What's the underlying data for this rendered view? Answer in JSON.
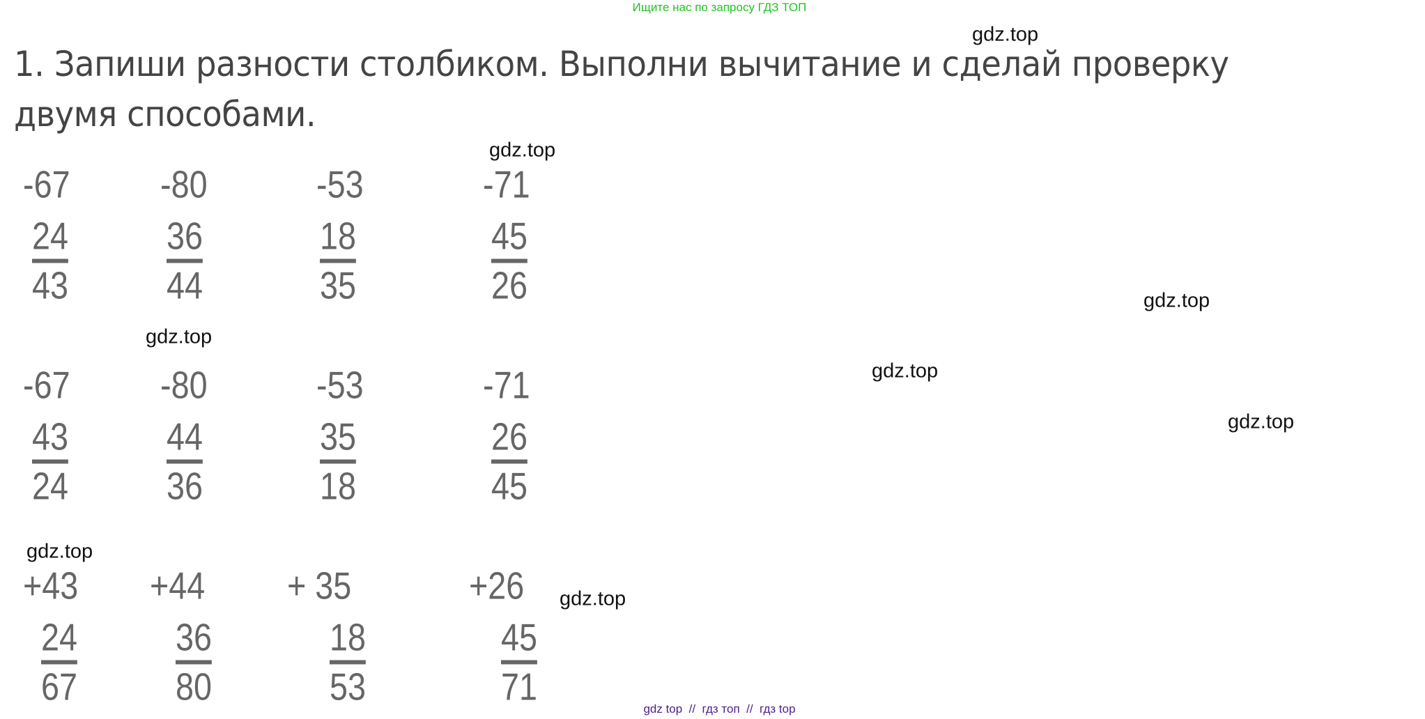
{
  "header": {
    "text": "Ищите нас по запросу ГДЗ ТОП",
    "color": "#22c322"
  },
  "title": "1. Запиши разности столбиком. Выполни вычитание и сделай проверку двумя способами.",
  "watermark": "gdz.top",
  "subtraction": [
    {
      "minuend": "-67",
      "subtrahend": "24",
      "result": "43"
    },
    {
      "minuend": "-80",
      "subtrahend": "36",
      "result": "44"
    },
    {
      "minuend": "-53",
      "subtrahend": "18",
      "result": "35"
    },
    {
      "minuend": "-71",
      "subtrahend": "45",
      "result": "26"
    }
  ],
  "check_subtraction": [
    {
      "minuend": "-67",
      "subtrahend": "43",
      "result": "24"
    },
    {
      "minuend": "-80",
      "subtrahend": "44",
      "result": "36"
    },
    {
      "minuend": "-53",
      "subtrahend": "35",
      "result": "18"
    },
    {
      "minuend": "-71",
      "subtrahend": "26",
      "result": "45"
    }
  ],
  "check_addition": [
    {
      "addend": "+43",
      "addend2": "24",
      "result": "67"
    },
    {
      "addend": "+44",
      "addend2": "36",
      "result": "80"
    },
    {
      "addend": "+ 35",
      "addend2": "18",
      "result": "53"
    },
    {
      "addend": "+26",
      "addend2": "45",
      "result": "71"
    }
  ],
  "footer": {
    "text": "gdz top  //  гдз топ  //  гдз top",
    "color": "#4b1f8a"
  }
}
